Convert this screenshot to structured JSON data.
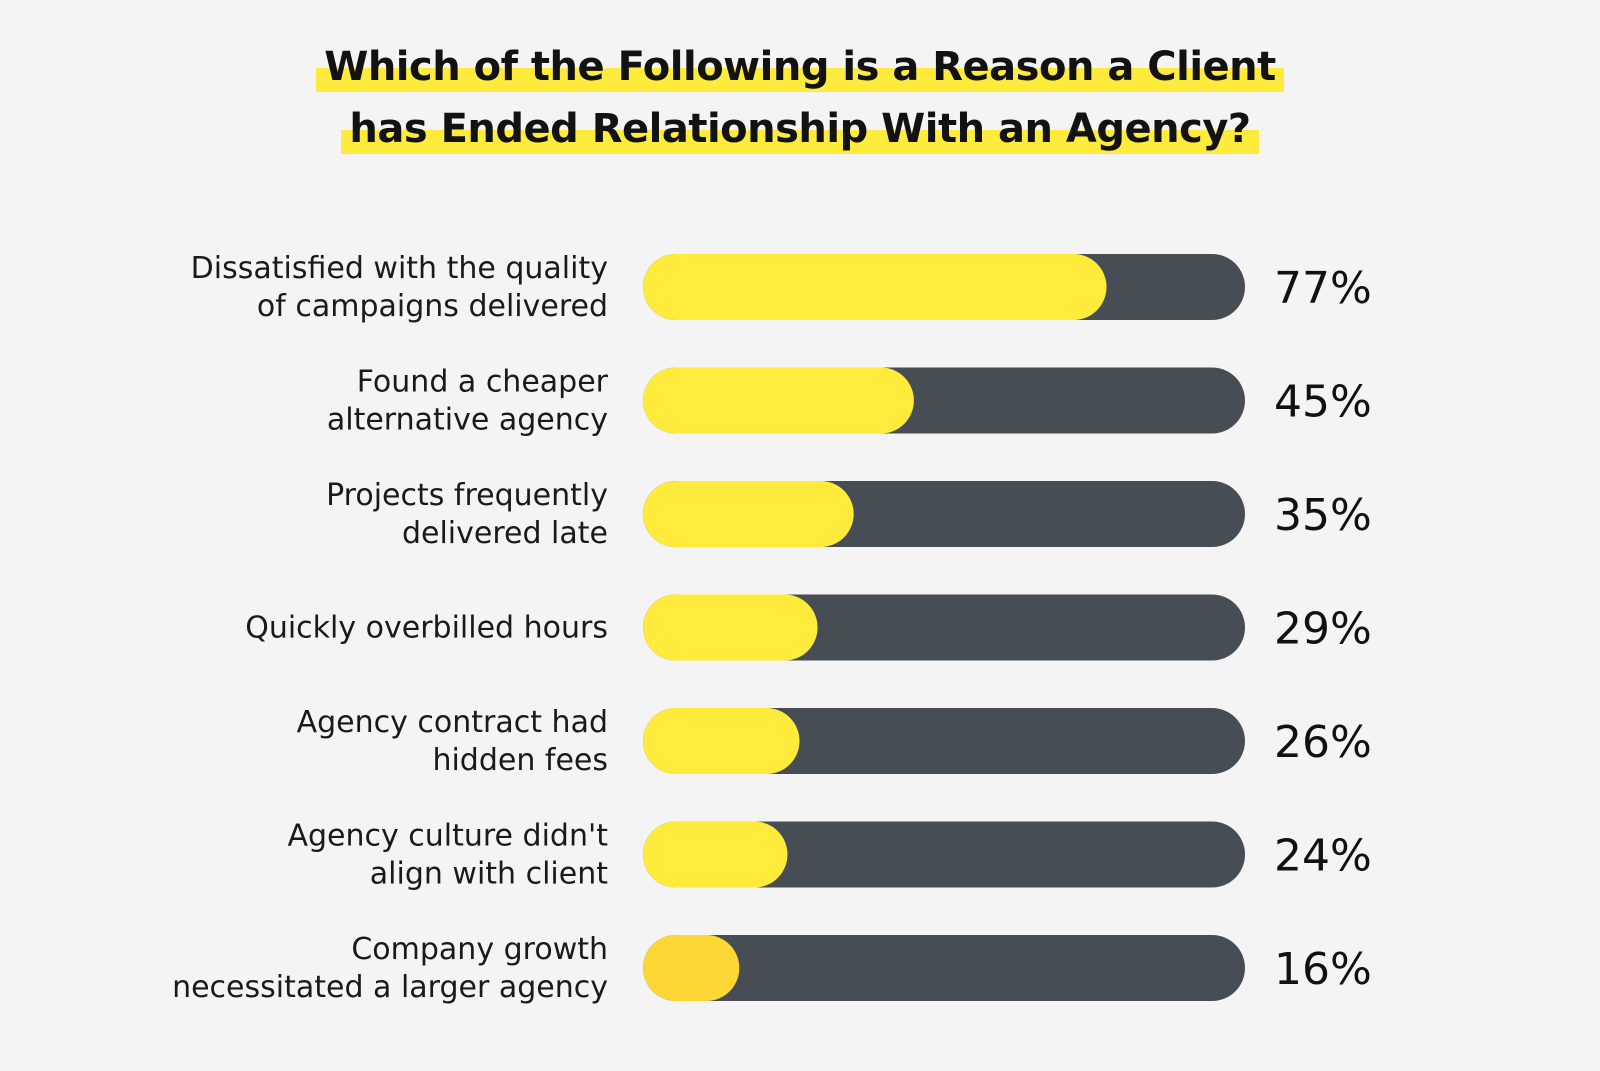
{
  "title_lines": [
    "Which of the Following is a Reason a Client",
    "has Ended Relationship With an Agency?"
  ],
  "colors": {
    "background": "#f4f4f4",
    "highlight": "#ffeb3b",
    "bar_fill": "#ffeb3b",
    "bar_fill_last": "#fdd835",
    "bar_track": "#474d55",
    "text": "#121212"
  },
  "chart_data": {
    "type": "bar",
    "orientation": "horizontal",
    "title": "Which of the Following is a Reason a Client has Ended Relationship With an Agency?",
    "categories": [
      [
        "Dissatisfied with the quality",
        "of campaigns delivered"
      ],
      [
        "Found a cheaper",
        "alternative agency"
      ],
      [
        "Projects frequently",
        "delivered late"
      ],
      [
        "Quickly overbilled hours"
      ],
      [
        "Agency contract had",
        "hidden fees"
      ],
      [
        "Agency culture didn't",
        "align with client"
      ],
      [
        "Company growth",
        "necessitated a larger agency"
      ]
    ],
    "values": [
      77,
      45,
      35,
      29,
      26,
      24,
      16
    ],
    "value_labels": [
      "77%",
      "45%",
      "35%",
      "29%",
      "26%",
      "24%",
      "16%"
    ],
    "xlim": [
      0,
      100
    ],
    "grid": false,
    "legend": "none"
  }
}
